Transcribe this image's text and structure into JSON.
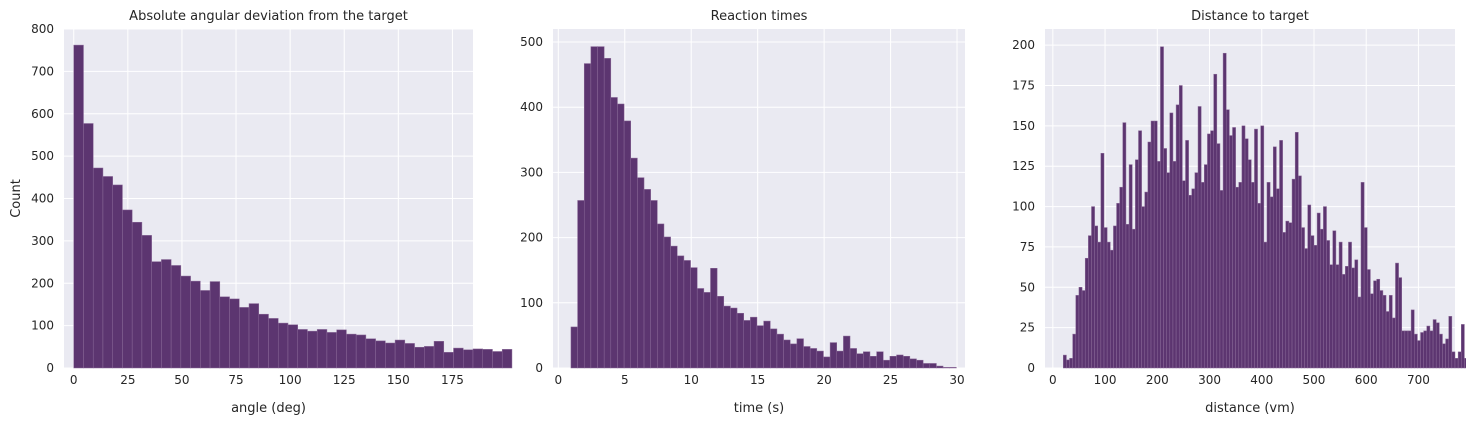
{
  "figure": {
    "face_color": "#ffffff",
    "axes_bg": "#eaeaf2",
    "grid_color": "#ffffff",
    "bar_color": "#5c3570",
    "bar_edge": "#8b6a99"
  },
  "chart_data": [
    {
      "type": "bar",
      "subtype": "histogram",
      "title": "Absolute angular deviation from the target",
      "xlabel": "angle (deg)",
      "ylabel": "Count",
      "xlim": [
        -4.5,
        184.5
      ],
      "ylim": [
        0,
        800
      ],
      "xticks": [
        0,
        25,
        50,
        75,
        100,
        125,
        150,
        175
      ],
      "xtick_labels": [
        "0",
        "25",
        "50",
        "75",
        "100",
        "125",
        "150",
        "175"
      ],
      "yticks": [
        0,
        100,
        200,
        300,
        400,
        500,
        600,
        700,
        800
      ],
      "ytick_labels": [
        "0",
        "100",
        "200",
        "300",
        "400",
        "500",
        "600",
        "700",
        "800"
      ],
      "grid": true,
      "bin_start": 0,
      "bin_width": 4.5,
      "values": [
        762,
        577,
        472,
        452,
        432,
        373,
        344,
        313,
        251,
        256,
        242,
        217,
        205,
        183,
        204,
        168,
        163,
        143,
        152,
        127,
        117,
        106,
        102,
        91,
        87,
        91,
        84,
        90,
        80,
        78,
        69,
        64,
        59,
        66,
        58,
        49,
        51,
        63,
        37,
        47,
        43,
        45,
        44,
        39,
        44
      ]
    },
    {
      "type": "bar",
      "subtype": "histogram",
      "title": "Reaction times",
      "xlabel": "time (s)",
      "ylabel": "",
      "xlim": [
        -0.4,
        30.6
      ],
      "ylim": [
        0,
        520
      ],
      "xticks": [
        0,
        5,
        10,
        15,
        20,
        25,
        30
      ],
      "xtick_labels": [
        "0",
        "5",
        "10",
        "15",
        "20",
        "25",
        "30"
      ],
      "yticks": [
        0,
        100,
        200,
        300,
        400,
        500
      ],
      "ytick_labels": [
        "0",
        "100",
        "200",
        "300",
        "400",
        "500"
      ],
      "grid": true,
      "bin_start": 0.95,
      "bin_width": 0.5,
      "values": [
        63,
        257,
        467,
        493,
        493,
        475,
        415,
        405,
        379,
        322,
        292,
        274,
        257,
        221,
        201,
        187,
        172,
        165,
        154,
        122,
        116,
        153,
        110,
        95,
        92,
        84,
        73,
        78,
        65,
        72,
        60,
        52,
        43,
        37,
        45,
        33,
        30,
        26,
        17,
        39,
        26,
        49,
        30,
        22,
        25,
        18,
        25,
        12,
        18,
        20,
        18,
        14,
        12,
        7,
        7,
        3,
        1,
        1
      ]
    },
    {
      "type": "bar",
      "subtype": "histogram",
      "title": "Distance to target",
      "xlabel": "distance (vm)",
      "ylabel": "",
      "xlim": [
        -15,
        770
      ],
      "ylim": [
        0,
        210
      ],
      "xticks": [
        0,
        100,
        200,
        300,
        400,
        500,
        600,
        700
      ],
      "xtick_labels": [
        "0",
        "100",
        "200",
        "300",
        "400",
        "500",
        "600",
        "700"
      ],
      "yticks": [
        0,
        25,
        50,
        75,
        100,
        125,
        150,
        175,
        200
      ],
      "ytick_labels": [
        "0",
        "25",
        "50",
        "75",
        "100",
        "125",
        "150",
        "175",
        "200"
      ],
      "grid": true,
      "bin_start": 20,
      "bin_width": 6,
      "values": [
        8,
        5,
        6,
        21,
        45,
        50,
        48,
        68,
        82,
        100,
        88,
        78,
        133,
        87,
        78,
        73,
        88,
        102,
        112,
        152,
        89,
        126,
        86,
        129,
        147,
        100,
        109,
        140,
        153,
        153,
        128,
        199,
        136,
        121,
        158,
        128,
        163,
        175,
        116,
        141,
        107,
        111,
        121,
        162,
        115,
        126,
        145,
        147,
        182,
        139,
        110,
        195,
        160,
        144,
        149,
        112,
        115,
        150,
        142,
        129,
        115,
        148,
        102,
        150,
        78,
        115,
        106,
        137,
        111,
        141,
        84,
        91,
        90,
        117,
        146,
        119,
        87,
        74,
        101,
        82,
        76,
        96,
        86,
        100,
        79,
        64,
        85,
        64,
        78,
        58,
        63,
        78,
        62,
        67,
        44,
        115,
        87,
        61,
        46,
        54,
        55,
        48,
        45,
        35,
        45,
        31,
        65,
        56,
        23,
        23,
        23,
        36,
        21,
        17,
        22,
        23,
        26,
        23,
        30,
        28,
        21,
        15,
        18,
        32,
        10,
        6,
        10,
        27,
        6,
        20,
        5,
        6,
        8
      ]
    }
  ]
}
